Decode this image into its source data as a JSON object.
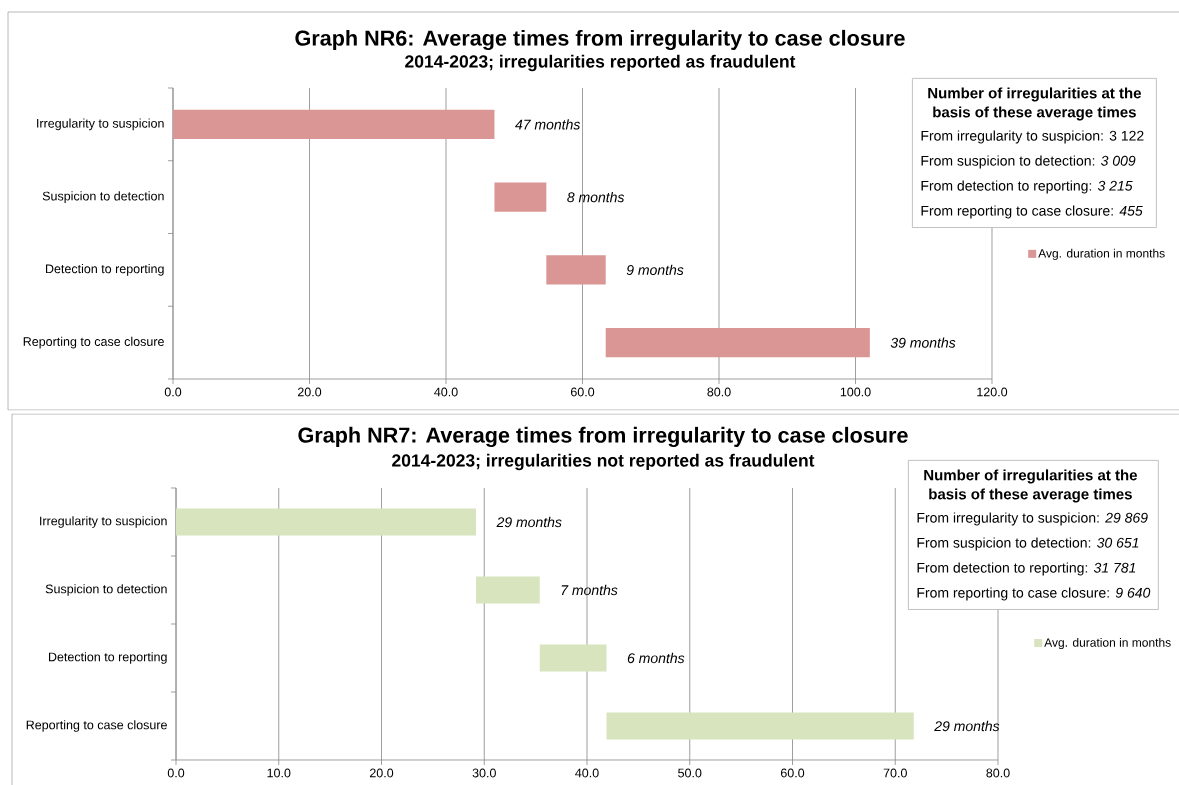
{
  "chart_data": [
    {
      "type": "bar",
      "orientation": "horizontal",
      "title": "Graph NR6: Average times from irregularity to case closure",
      "subtitle": "2014-2023; irregularities reported as fraudulent",
      "categories": [
        "Irregularity to suspicion",
        "Suspicion to detection",
        "Detection to reporting",
        "Reporting to case closure"
      ],
      "series": [
        {
          "name": "Avg. duration in months",
          "color": "#d99694",
          "base": [
            0,
            47.1,
            54.7,
            63.4
          ],
          "values": [
            47.1,
            7.6,
            8.7,
            38.7
          ],
          "value_labels": [
            "47 months",
            "8 months",
            "9 months",
            "39 months"
          ]
        }
      ],
      "xlim": [
        0,
        120
      ],
      "xticks": [
        {
          "value": 0,
          "label": "0.0"
        },
        {
          "value": 20,
          "label": "20.0"
        },
        {
          "value": 40,
          "label": "40.0"
        },
        {
          "value": 60,
          "label": "60.0"
        },
        {
          "value": 80,
          "label": "80.0"
        },
        {
          "value": 100,
          "label": "100.0"
        },
        {
          "value": 120,
          "label": "120.0"
        }
      ],
      "grid": "x",
      "legend": "right",
      "annotations": [
        "Number of irregularities at the basis of these average times",
        "From irregularity to suspicion: 3 122",
        "From suspicion to detection: *3 009*",
        "From detection to reporting: *3 215*",
        "From reporting to case closure: *455*"
      ]
    },
    {
      "type": "bar",
      "orientation": "horizontal",
      "title": "Graph NR7: Average times from irregularity to case closure",
      "subtitle": "2014-2023; irregularities not reported as fraudulent",
      "categories": [
        "Irregularity to suspicion",
        "Suspicion to detection",
        "Detection to reporting",
        "Reporting to case closure"
      ],
      "series": [
        {
          "name": "Avg. duration in months",
          "color": "#d7e4bd",
          "base": [
            0,
            29.2,
            35.4,
            41.9
          ],
          "values": [
            29.2,
            6.2,
            6.5,
            29.9
          ]
        }
      ],
      "xlim": [
        0,
        80
      ],
      "xticks": [
        {
          "value": 0,
          "label": "0.0"
        },
        {
          "value": 10,
          "label": "10.0"
        },
        {
          "value": 20,
          "label": "20.0"
        },
        {
          "value": 30,
          "label": "30.0"
        },
        {
          "value": 40,
          "label": "40.0"
        },
        {
          "value": 50,
          "label": "50.0"
        },
        {
          "value": 60,
          "label": "60.0"
        },
        {
          "value": 70,
          "label": "70.0"
        },
        {
          "value": 80,
          "label": "80.0"
        }
      ],
      "grid": "x",
      "legend": "right",
      "annotations": [
        "Number of irregularities at the basis of these average times",
        "From irregularity to suspicion: *29 869*",
        "From suspicion to detection: *30 651*",
        "From detection to reporting: *31 781*",
        "From reporting to case closure: *9 640*",
        {
          "text": "29 months",
          "x": 29.2,
          "y": "Irregularity to suspicion"
        },
        {
          "text": "7 months",
          "x": 35.4,
          "y": "Suspicion to detection"
        },
        {
          "text": "6 months",
          "x": 41.9,
          "y": "Detection to reporting"
        },
        {
          "text": "29 months",
          "x": 71.8,
          "y": "Reporting to case closure"
        }
      ]
    }
  ]
}
